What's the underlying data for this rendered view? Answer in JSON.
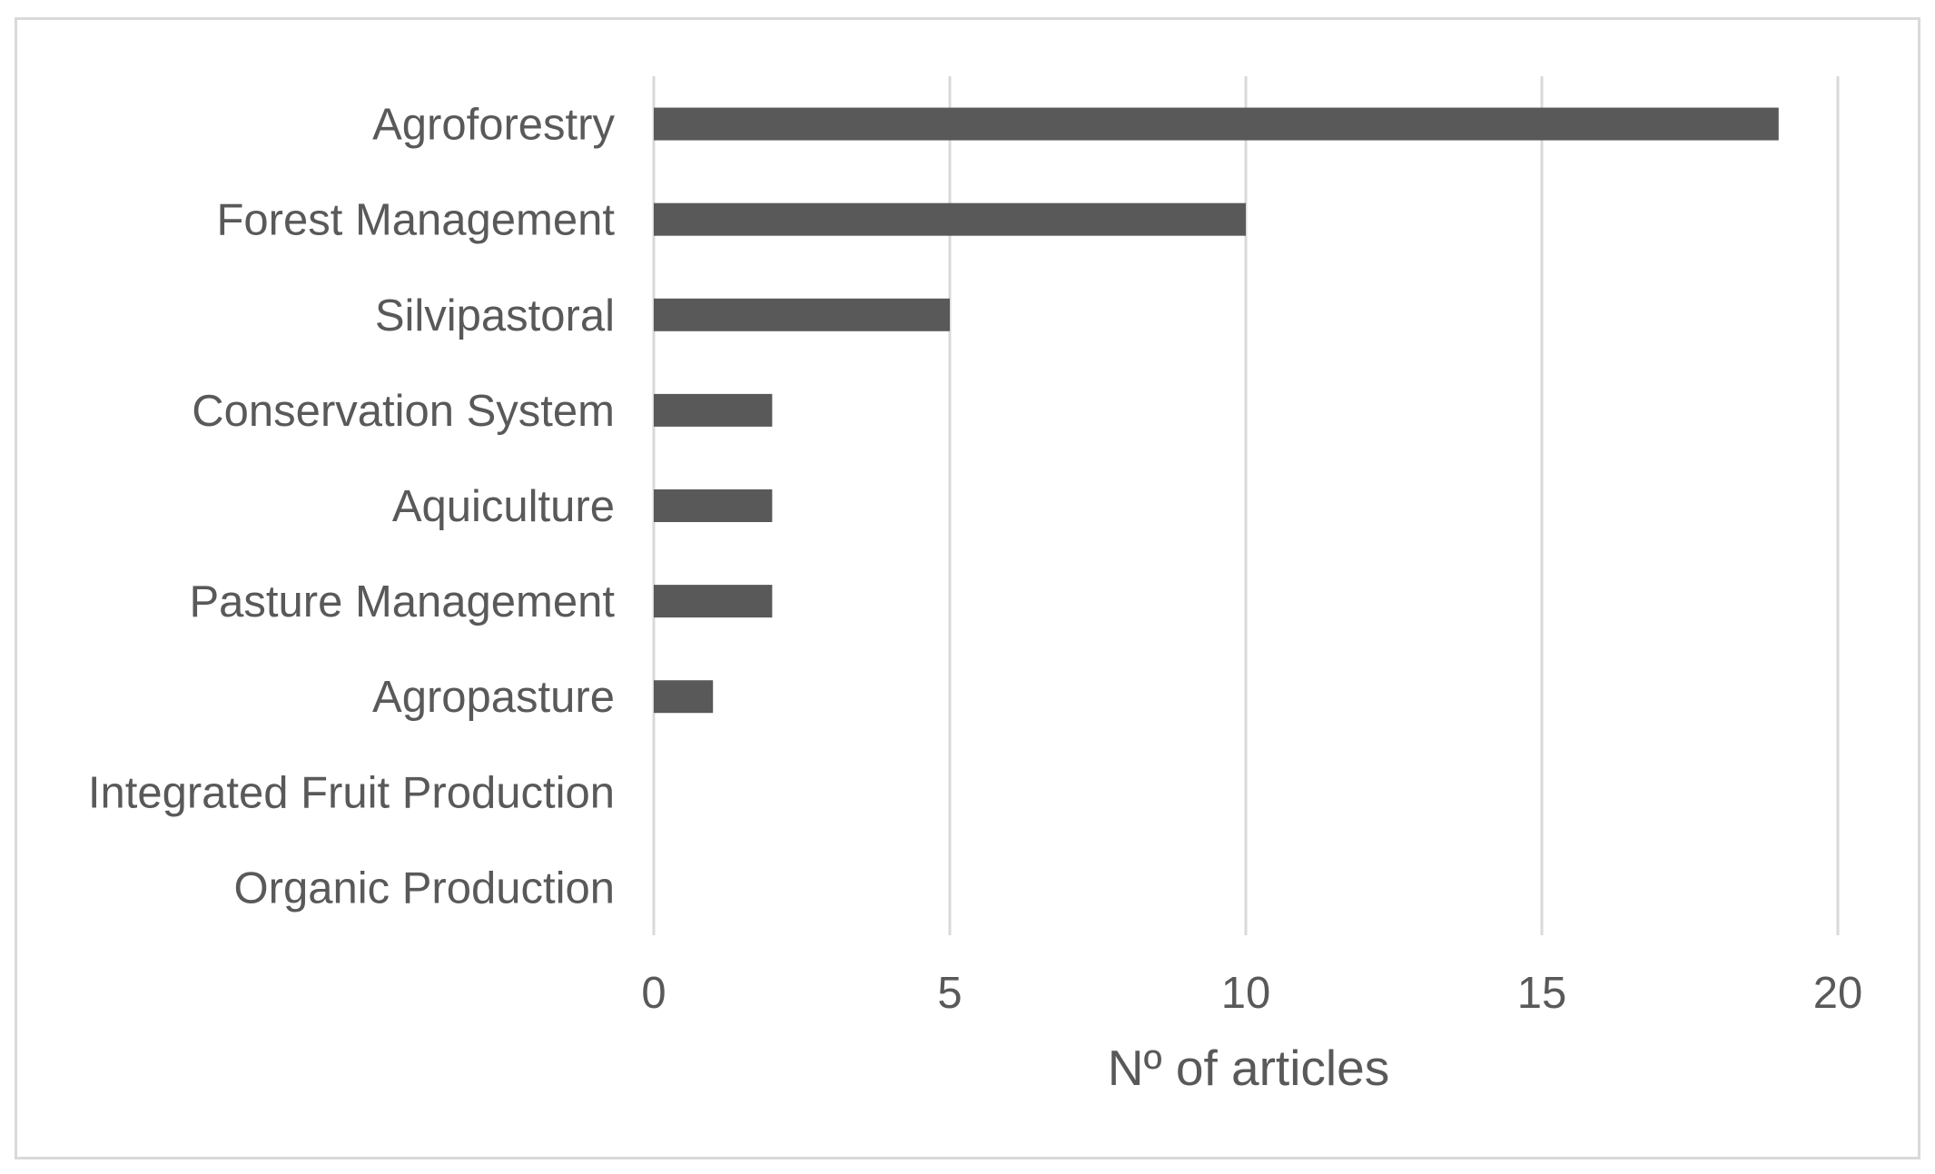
{
  "chart_data": {
    "type": "bar",
    "orientation": "horizontal",
    "categories": [
      "Agroforestry",
      "Forest Management",
      "Silvipastoral",
      "Conservation System",
      "Aquiculture",
      "Pasture Management",
      "Agropasture",
      "Integrated Fruit Production",
      "Organic Production"
    ],
    "values": [
      19,
      10,
      5,
      2,
      2,
      2,
      1,
      0,
      0
    ],
    "xlabel": "Nº of articles",
    "ylabel": "",
    "xlim": [
      0,
      20
    ],
    "xticks": [
      "0",
      "5",
      "10",
      "15",
      "20"
    ],
    "grid": "vertical",
    "legend": "none",
    "colors": {
      "bar": "#595959",
      "grid": "#d9d9d9",
      "text": "#595959"
    }
  }
}
